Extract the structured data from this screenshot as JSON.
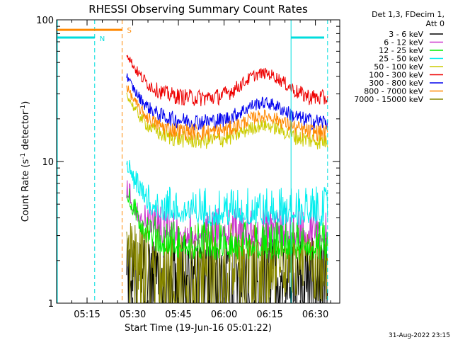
{
  "chart_data": {
    "type": "line",
    "title": "RHESSI Observing Summary Count Rates",
    "xlabel": "Start Time (19-Jun-16 05:01:22)",
    "ylabel_main": "Count Rate (s",
    "ylabel_sup1": "-1",
    "ylabel_mid": " detector",
    "ylabel_sup2": "-1",
    "ylabel_end": ")",
    "yscale": "log",
    "ylim": [
      1,
      100
    ],
    "xlim_minutes": [
      5.0,
      98.0
    ],
    "x_ticks": [
      {
        "label": "05:15",
        "minutes": 15
      },
      {
        "label": "05:30",
        "minutes": 30
      },
      {
        "label": "05:45",
        "minutes": 45
      },
      {
        "label": "06:00",
        "minutes": 60
      },
      {
        "label": "06:15",
        "minutes": 75
      },
      {
        "label": "06:30",
        "minutes": 90
      }
    ],
    "y_ticks": [
      {
        "label": "1",
        "value": 1
      },
      {
        "label": "10",
        "value": 10
      },
      {
        "label": "100",
        "value": 100
      }
    ],
    "legend_header": [
      "Det 1,3, FDecim 1,",
      "Att 0"
    ],
    "series": [
      {
        "name": "3 - 6 keV",
        "color": "#000000",
        "kind": "low",
        "base": 1.9,
        "amp": 0.0,
        "floor": 1.0
      },
      {
        "name": "6 - 12 keV",
        "color": "#cc33cc",
        "kind": "mid",
        "base": 4.8,
        "amp": 0.0,
        "floor": 2.5
      },
      {
        "name": "12 - 25 keV",
        "color": "#00ee00",
        "kind": "mid",
        "base": 5.6,
        "amp": 0.0,
        "floor": 2.0
      },
      {
        "name": "25 - 50 keV",
        "color": "#00eeee",
        "kind": "mid",
        "base": 8.5,
        "amp": 0.0,
        "floor": 3.5
      },
      {
        "name": "50 - 100 keV",
        "color": "#cccc00",
        "kind": "bg",
        "base": 18,
        "amp": 4,
        "floor": 14
      },
      {
        "name": "100 - 300 keV",
        "color": "#ee0000",
        "kind": "bg",
        "base": 34,
        "amp": 14,
        "floor": 28
      },
      {
        "name": "300 - 800 keV",
        "color": "#0000ee",
        "kind": "bg",
        "base": 24,
        "amp": 7,
        "floor": 19
      },
      {
        "name": "800 - 7000 keV",
        "color": "#ff8800",
        "kind": "bg",
        "base": 20,
        "amp": 5,
        "floor": 16
      },
      {
        "name": "7000 - 15000 keV",
        "color": "#888800",
        "kind": "low",
        "base": 2.8,
        "amp": 0.0,
        "floor": 1.0
      }
    ],
    "annotations": {
      "saa_label": "S",
      "night_label": "N",
      "attenuator_level": 85,
      "night_level": 75,
      "night_end_minutes": 17.5,
      "saa_start_minutes": 26.5,
      "data_start_minutes": 28.0,
      "night_start_minutes": 82.0,
      "data_end_minutes": 94.0
    },
    "grid": false
  },
  "footer": {
    "timestamp": "31-Aug-2022 23:15"
  },
  "colors": {
    "night_line": "#00dddd",
    "saa_line": "#ff8800",
    "axis": "#000000"
  }
}
